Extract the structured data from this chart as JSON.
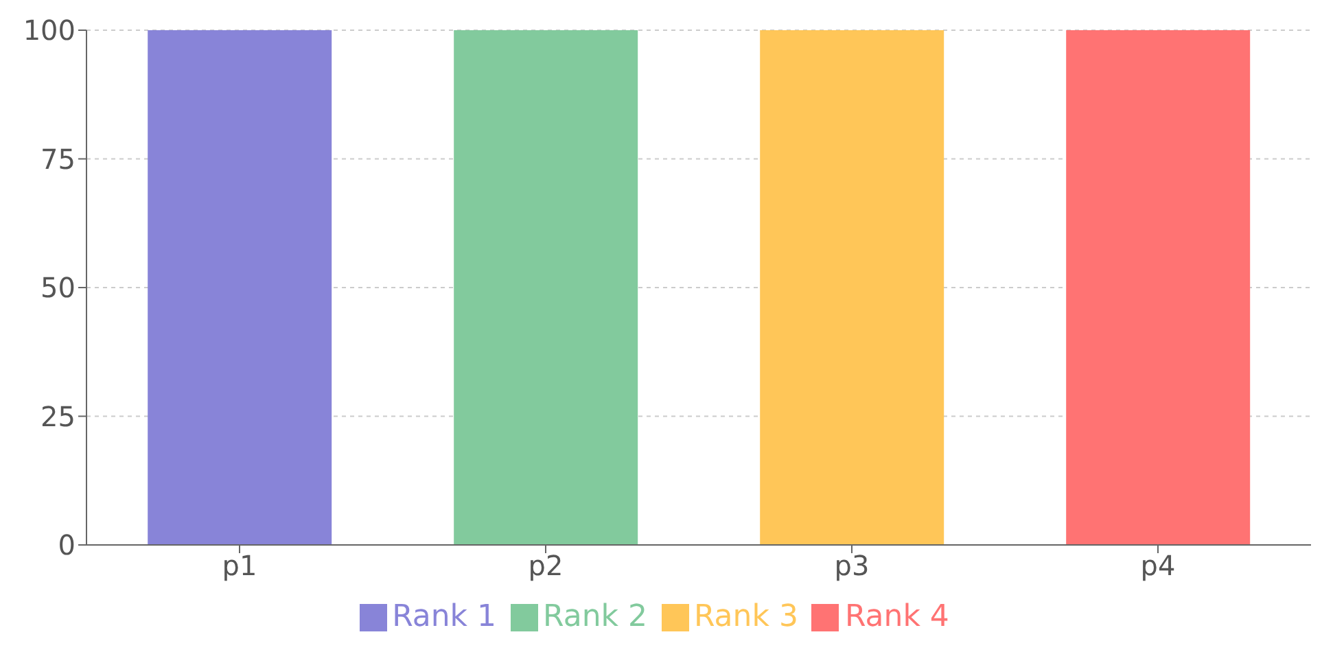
{
  "chart_data": {
    "type": "bar",
    "stacked": true,
    "categories": [
      "p1",
      "p2",
      "p3",
      "p4"
    ],
    "series": [
      {
        "name": "Rank 1",
        "color": "#8884d8",
        "values": [
          100,
          0,
          0,
          0
        ]
      },
      {
        "name": "Rank 2",
        "color": "#82ca9d",
        "values": [
          0,
          100,
          0,
          0
        ]
      },
      {
        "name": "Rank 3",
        "color": "#ffc658",
        "values": [
          0,
          0,
          100,
          0
        ]
      },
      {
        "name": "Rank 4",
        "color": "#ff7373",
        "values": [
          0,
          0,
          0,
          100
        ]
      }
    ],
    "ylim": [
      0,
      100
    ],
    "yticks": [
      0,
      25,
      50,
      75,
      100
    ],
    "grid": "y",
    "legend": "bottom"
  }
}
